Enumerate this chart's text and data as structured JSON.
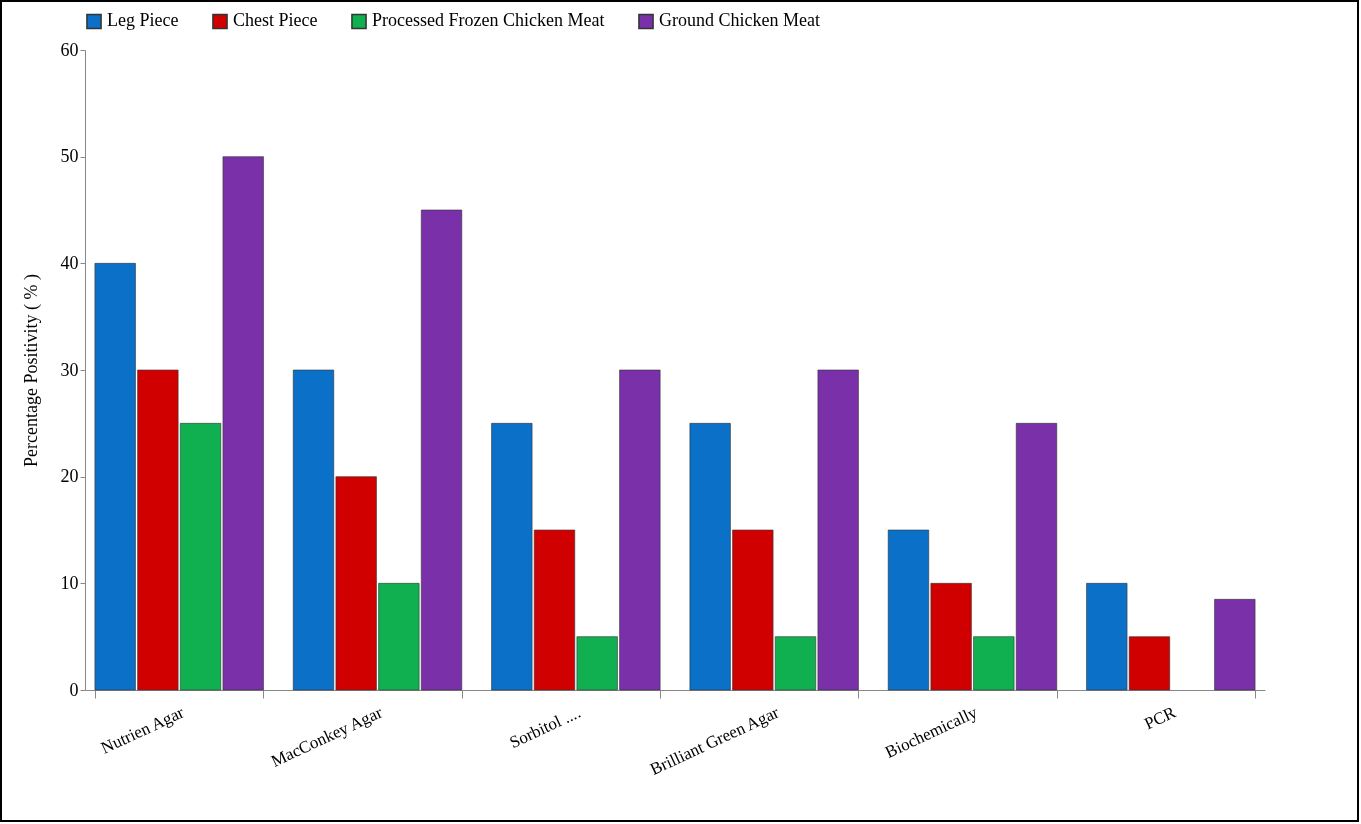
{
  "chart_data": {
    "type": "bar",
    "ylabel": "Percentage Positivity ( % )",
    "categories": [
      "Nutrien Agar",
      "MacConkey Agar",
      "Sorbitol ....",
      "Brilliant Green Agar",
      "Biochemically",
      "PCR"
    ],
    "series": [
      {
        "name": "Leg Piece",
        "color": "#0a70c8",
        "values": [
          40,
          30,
          25,
          25,
          15,
          10
        ]
      },
      {
        "name": "Chest Piece",
        "color": "#d00000",
        "values": [
          30,
          20,
          15,
          15,
          10,
          5
        ]
      },
      {
        "name": "Processed Frozen Chicken Meat",
        "color": "#10b050",
        "values": [
          25,
          10,
          5,
          5,
          5,
          null
        ]
      },
      {
        "name": "Ground Chicken Meat",
        "color": "#7a30a8",
        "values": [
          50,
          45,
          30,
          30,
          25,
          8.5
        ]
      }
    ],
    "ylim": [
      0,
      60
    ],
    "yticks": [
      0,
      10,
      20,
      30,
      40,
      50,
      60
    ],
    "grid": false,
    "legend": "top"
  }
}
